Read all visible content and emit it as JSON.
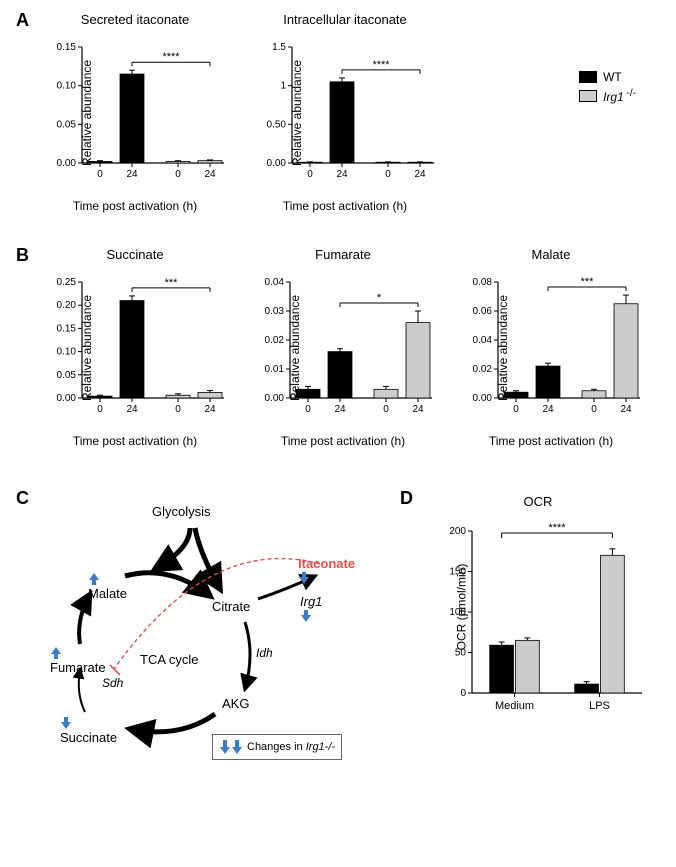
{
  "panelA": {
    "label": "A",
    "charts": [
      {
        "title": "Secreted itaconate",
        "type": "bar",
        "ylabel": "Relative abundance",
        "xlabel": "Time post activation (h)",
        "ylim": [
          0,
          0.15
        ],
        "yticks": [
          0.0,
          0.05,
          0.1,
          0.15
        ],
        "xticks": [
          "0",
          "24",
          "0",
          "24"
        ],
        "bars": [
          {
            "value": 0.002,
            "err": 0.001,
            "color": "#000000"
          },
          {
            "value": 0.115,
            "err": 0.005,
            "color": "#000000"
          },
          {
            "value": 0.002,
            "err": 0.001,
            "color": "#cccccc"
          },
          {
            "value": 0.003,
            "err": 0.001,
            "color": "#cccccc"
          }
        ],
        "sig": "****",
        "sig_from_bar": 1,
        "sig_to_bar": 3
      },
      {
        "title": "Intracellular itaconate",
        "type": "bar",
        "ylabel": "Relative abundance",
        "xlabel": "Time post activation (h)",
        "ylim": [
          0,
          1.5
        ],
        "yticks": [
          0.0,
          0.5,
          1.0,
          1.5
        ],
        "xticks": [
          "0",
          "24",
          "0",
          "24"
        ],
        "bars": [
          {
            "value": 0.01,
            "err": 0.005,
            "color": "#000000"
          },
          {
            "value": 1.05,
            "err": 0.05,
            "color": "#000000"
          },
          {
            "value": 0.01,
            "err": 0.005,
            "color": "#cccccc"
          },
          {
            "value": 0.01,
            "err": 0.005,
            "color": "#cccccc"
          }
        ],
        "sig": "****",
        "sig_from_bar": 1,
        "sig_to_bar": 3
      }
    ],
    "legend": {
      "items": [
        {
          "label": "WT",
          "color": "#000000"
        },
        {
          "label_html": "Irg1 -/-",
          "label_prefix": "Irg1",
          "label_suffix": " -/-",
          "color": "#cccccc"
        }
      ]
    }
  },
  "panelB": {
    "label": "B",
    "charts": [
      {
        "title": "Succinate",
        "ylabel": "Relative abundance",
        "xlabel": "Time post activation (h)",
        "ylim": [
          0,
          0.25
        ],
        "yticks": [
          0.0,
          0.05,
          0.1,
          0.15,
          0.2,
          0.25
        ],
        "xticks": [
          "0",
          "24",
          "0",
          "24"
        ],
        "bars": [
          {
            "value": 0.004,
            "err": 0.002,
            "color": "#000000"
          },
          {
            "value": 0.21,
            "err": 0.01,
            "color": "#000000"
          },
          {
            "value": 0.006,
            "err": 0.003,
            "color": "#cccccc"
          },
          {
            "value": 0.012,
            "err": 0.004,
            "color": "#cccccc"
          }
        ],
        "sig": "***",
        "sig_from_bar": 1,
        "sig_to_bar": 3
      },
      {
        "title": "Fumarate",
        "ylabel": "Relative abundance",
        "xlabel": "Time post activation (h)",
        "ylim": [
          0,
          0.04
        ],
        "yticks": [
          0.0,
          0.01,
          0.02,
          0.03,
          0.04
        ],
        "xticks": [
          "0",
          "24",
          "0",
          "24"
        ],
        "bars": [
          {
            "value": 0.003,
            "err": 0.001,
            "color": "#000000"
          },
          {
            "value": 0.016,
            "err": 0.001,
            "color": "#000000"
          },
          {
            "value": 0.003,
            "err": 0.001,
            "color": "#cccccc"
          },
          {
            "value": 0.026,
            "err": 0.004,
            "color": "#cccccc"
          }
        ],
        "sig": "*",
        "sig_from_bar": 1,
        "sig_to_bar": 3
      },
      {
        "title": "Malate",
        "ylabel": "Relative abundance",
        "xlabel": "Time post activation (h)",
        "ylim": [
          0,
          0.08
        ],
        "yticks": [
          0.0,
          0.02,
          0.04,
          0.06,
          0.08
        ],
        "xticks": [
          "0",
          "24",
          "0",
          "24"
        ],
        "bars": [
          {
            "value": 0.004,
            "err": 0.001,
            "color": "#000000"
          },
          {
            "value": 0.022,
            "err": 0.002,
            "color": "#000000"
          },
          {
            "value": 0.005,
            "err": 0.001,
            "color": "#cccccc"
          },
          {
            "value": 0.065,
            "err": 0.006,
            "color": "#cccccc"
          }
        ],
        "sig": "***",
        "sig_from_bar": 1,
        "sig_to_bar": 3
      }
    ]
  },
  "panelC": {
    "label": "C",
    "nodes": {
      "glycolysis": "Glycolysis",
      "malate": "Malate",
      "citrate": "Citrate",
      "itaconate": "Itaconate",
      "irg1": "Irg1",
      "fumarate": "Fumarate",
      "sdh": "Sdh",
      "tca": "TCA cycle",
      "idh": "Idh",
      "succinate": "Succinate",
      "akg": "AKG"
    },
    "change_key": "Changes in",
    "change_key_target": "Irg1-/-",
    "arrow_color": "#000000",
    "inhibit_color": "#d9534f",
    "change_arrow_color": "#3a7cc7",
    "itaconate_color": "#d9534f"
  },
  "panelD": {
    "label": "D",
    "title": "OCR",
    "ylabel": "OCR (pmol/min)",
    "ylim": [
      0,
      200
    ],
    "yticks": [
      0,
      50,
      100,
      150,
      200
    ],
    "xticks": [
      "Medium",
      "LPS"
    ],
    "groups": [
      {
        "wt": 59,
        "wt_err": 4,
        "ko": 65,
        "ko_err": 3
      },
      {
        "wt": 11,
        "wt_err": 3,
        "ko": 170,
        "ko_err": 8
      }
    ],
    "wt_color": "#000000",
    "ko_color": "#cccccc",
    "sig": "****",
    "sig_from_group_bar": "0.wt",
    "sig_to_group_bar": "1.ko"
  }
}
